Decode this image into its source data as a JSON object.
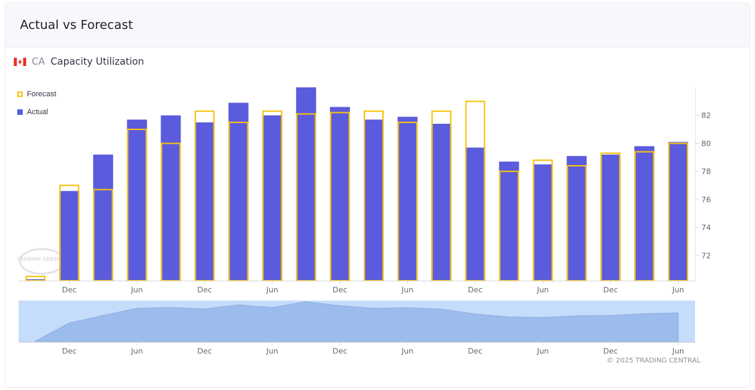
{
  "header": {
    "title": "Actual vs Forecast"
  },
  "subtitle": {
    "country_code": "CA",
    "indicator": "Capacity Utilization"
  },
  "legend": {
    "forecast_label": "Forecast",
    "actual_label": "Actual"
  },
  "footer": {
    "copyright": "© 2025 TRADING CENTRAL"
  },
  "watermark": {
    "text": "TRADING CENTRAL"
  },
  "colors": {
    "actual": "#5b5bde",
    "forecast": "#f5c211",
    "navigator_fill": "#9bbcec",
    "navigator_bg": "#c5dcfb"
  },
  "chart_data": {
    "type": "bar",
    "title": "",
    "xlabel": "",
    "ylabel": "",
    "ylim": [
      70.2,
      84
    ],
    "yticks": [
      72,
      74,
      76,
      78,
      80,
      82
    ],
    "x_tick_labels": [
      "Dec",
      "Jun",
      "Dec",
      "Jun",
      "Dec",
      "Jun",
      "Dec",
      "Jun",
      "Dec",
      "Jun"
    ],
    "y_axis_position": "right",
    "grid": false,
    "legend_position": "top-left",
    "series": [
      {
        "name": "Actual",
        "values": [
          70.3,
          76.6,
          79.2,
          81.7,
          82.0,
          81.5,
          82.9,
          82.0,
          84.0,
          82.6,
          81.7,
          81.9,
          81.4,
          79.7,
          78.7,
          78.5,
          79.1,
          79.2,
          79.8,
          80.1
        ]
      },
      {
        "name": "Forecast",
        "values": [
          70.5,
          77.0,
          76.7,
          81.0,
          80.0,
          82.3,
          81.5,
          82.3,
          82.1,
          82.2,
          82.3,
          81.5,
          82.3,
          83.0,
          78.0,
          78.8,
          78.4,
          79.3,
          79.4,
          80.0
        ]
      }
    ]
  }
}
